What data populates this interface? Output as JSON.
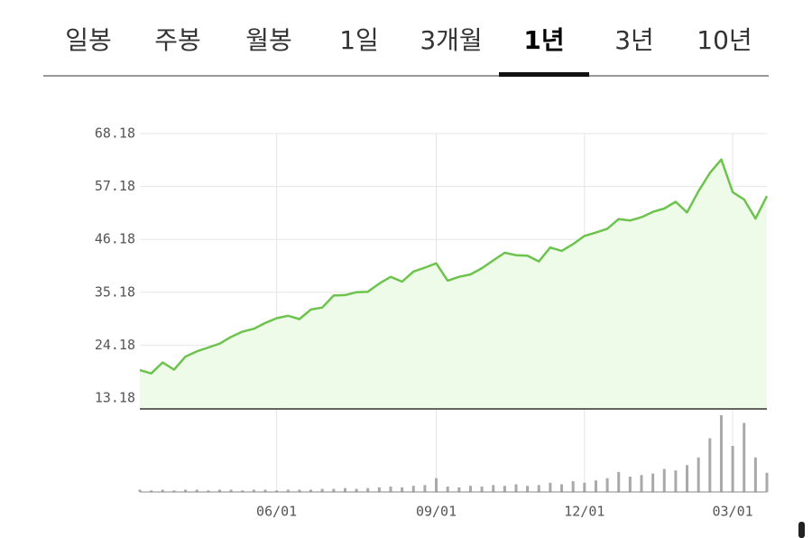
{
  "tabs": {
    "items": [
      "일봉",
      "주봉",
      "월봉",
      "1일",
      "3개월",
      "1년",
      "3년",
      "10년"
    ],
    "selected": 5
  },
  "chart_data": {
    "type": "line",
    "categories": [
      null,
      null,
      null,
      null,
      null,
      null,
      null,
      null,
      null,
      null,
      null,
      null,
      "06/01",
      null,
      null,
      null,
      null,
      null,
      null,
      null,
      null,
      null,
      null,
      null,
      null,
      null,
      "09/01",
      null,
      null,
      null,
      null,
      null,
      null,
      null,
      null,
      null,
      null,
      null,
      null,
      "12/01",
      null,
      null,
      null,
      null,
      null,
      null,
      null,
      null,
      null,
      null,
      null,
      null,
      "03/01",
      null,
      null,
      null
    ],
    "values": [
      19.0,
      18.3,
      20.6,
      19.1,
      21.8,
      22.9,
      23.7,
      24.5,
      25.9,
      27.0,
      27.6,
      28.8,
      29.8,
      30.3,
      29.6,
      31.6,
      32.0,
      34.5,
      34.6,
      35.2,
      35.3,
      37.0,
      38.4,
      37.4,
      39.5,
      40.3,
      41.2,
      37.6,
      38.4,
      38.9,
      40.2,
      41.8,
      43.4,
      42.9,
      42.8,
      41.6,
      44.5,
      43.8,
      45.2,
      46.9,
      47.6,
      48.4,
      50.4,
      50.1,
      50.8,
      51.9,
      52.6,
      54.0,
      51.8,
      56.2,
      60.0,
      62.8,
      56.0,
      54.5,
      50.5,
      55.2
    ],
    "color": "#6cc34d",
    "fill_color": "#eefbe8",
    "ylim": [
      10.93,
      68.18
    ],
    "yticks": [
      13.18,
      24.18,
      35.18,
      46.18,
      57.18,
      68.18
    ],
    "grid": true,
    "volume": {
      "color": "#a9a9a9",
      "values": [
        3,
        2,
        3,
        2,
        3,
        3,
        2,
        3,
        3,
        2,
        3,
        3,
        2,
        3,
        3,
        3,
        4,
        4,
        5,
        4,
        5,
        6,
        7,
        6,
        8,
        9,
        18,
        7,
        6,
        8,
        7,
        9,
        8,
        10,
        8,
        9,
        12,
        10,
        14,
        12,
        15,
        18,
        26,
        20,
        22,
        24,
        30,
        28,
        35,
        45,
        70,
        100,
        60,
        90,
        45,
        25
      ]
    }
  }
}
